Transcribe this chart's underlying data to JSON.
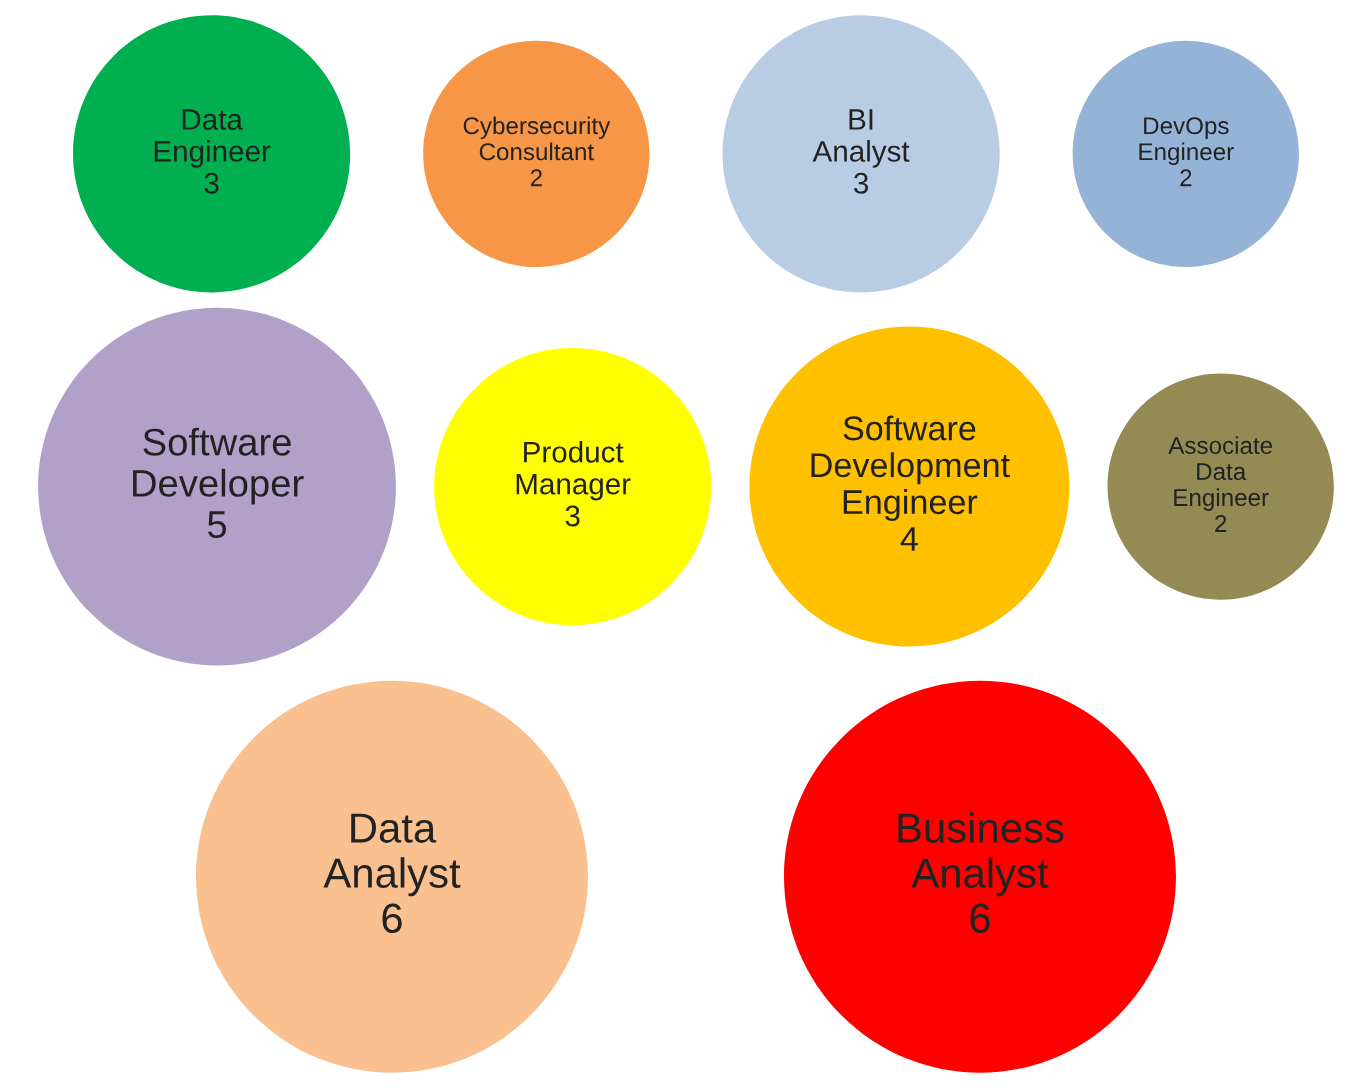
{
  "chart_data": {
    "type": "other",
    "categories": [
      "Data Engineer",
      "Cybersecurity Consultant",
      "BI Analyst",
      "DevOps Engineer",
      "Software Developer",
      "Product Manager",
      "Software Development Engineer",
      "Associate Data Engineer",
      "Data Analyst",
      "Business Analyst"
    ],
    "values": [
      3,
      2,
      3,
      2,
      5,
      3,
      4,
      2,
      6,
      6
    ],
    "colors": [
      "#00b050",
      "#f79646",
      "#b8cce4",
      "#95b3d7",
      "#b1a0c7",
      "#ffff00",
      "#ffc000",
      "#948a54",
      "#fac090",
      "#ff0000"
    ],
    "data_labels": true
  }
}
